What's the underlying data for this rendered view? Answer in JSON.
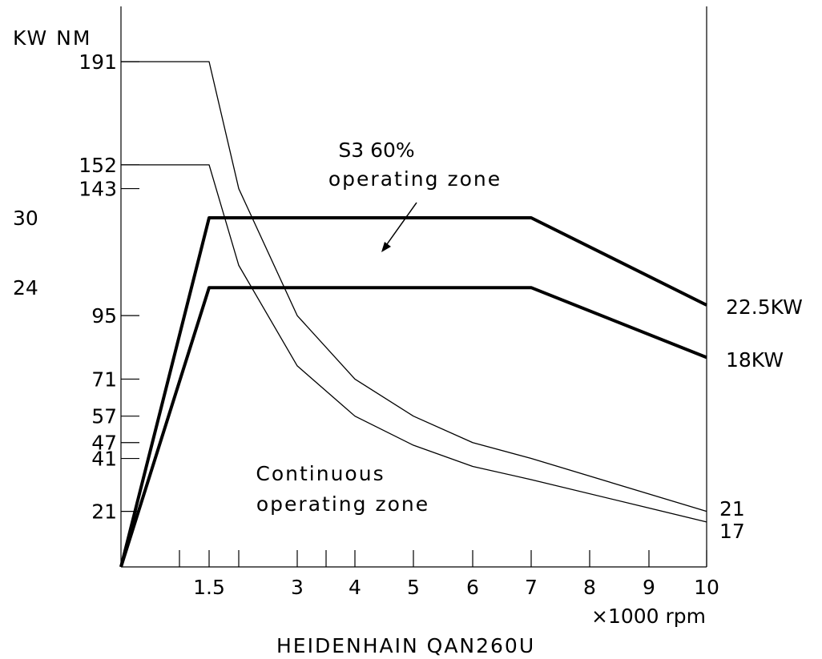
{
  "chart_data": {
    "type": "line",
    "title": "HEIDENHAIN QAN260U",
    "xlabel": "×1000 rpm",
    "left_axis_label": "KW NM",
    "x_ticks": [
      1.5,
      3,
      4,
      5,
      6,
      7,
      8,
      9,
      10
    ],
    "x_tick_labels": [
      "1.5",
      "3",
      "4",
      "5",
      "6",
      "7",
      "8",
      "9",
      "10"
    ],
    "x_minor_ticks": [
      1,
      2,
      3.5
    ],
    "xlim": [
      0,
      10
    ],
    "torque_ticks": [
      191,
      152,
      143,
      95,
      71,
      57,
      47,
      41,
      21
    ],
    "power_ticks": [
      30,
      24
    ],
    "torque_series": [
      {
        "x": [
          0,
          1.5,
          2,
          3,
          4,
          5,
          6,
          7,
          10
        ],
        "y": [
          191,
          191,
          143,
          95,
          71,
          57,
          47,
          41,
          21
        ]
      },
      {
        "x": [
          0,
          1.5,
          2,
          3,
          4,
          5,
          6,
          7,
          10
        ],
        "y": [
          152,
          152,
          114,
          76,
          57,
          46,
          38,
          33,
          17
        ]
      }
    ],
    "power_series": [
      {
        "name": "22.5KW",
        "x": [
          0,
          1.5,
          7,
          10
        ],
        "y": [
          0,
          30,
          30,
          22.5
        ]
      },
      {
        "name": "18KW",
        "x": [
          0,
          1.5,
          7,
          10
        ],
        "y": [
          0,
          24,
          24,
          18
        ]
      }
    ],
    "right_labels": [
      "21",
      "17"
    ],
    "annotations": {
      "s3_line1": "S3 60%",
      "s3_line2": "operating zone",
      "cont_line1": "Continuous",
      "cont_line2": "operating zone"
    }
  }
}
